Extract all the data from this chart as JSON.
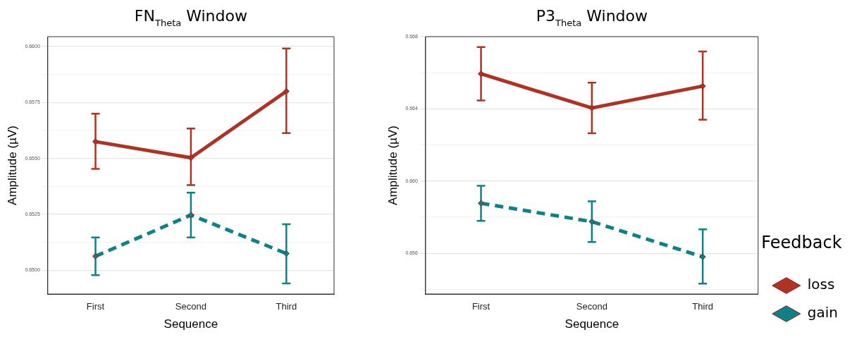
{
  "chart_data": [
    {
      "type": "line",
      "title": "FN$_{Theta}$ Window",
      "xlabel": "Sequence",
      "ylabel": "Amplitude (µV)",
      "categories": [
        "First",
        "Second",
        "Third"
      ],
      "series": [
        {
          "color": "#b03222",
          "line_style": "solid",
          "values": [
            0.65575,
            0.65503,
            0.658
          ],
          "errors": [
            [
              0.65453,
              0.657
            ],
            [
              0.65381,
              0.65634
            ],
            [
              0.65613,
              0.65991
            ]
          ]
        },
        {
          "color": "#0b8288",
          "line_style": "dashed",
          "values": [
            0.65063,
            0.65247,
            0.65075
          ],
          "errors": [
            [
              0.64978,
              0.65147
            ],
            [
              0.65147,
              0.65347
            ],
            [
              0.64941,
              0.65206
            ]
          ]
        }
      ],
      "ylim": [
        0.64894,
        0.66044
      ],
      "yticks": [
        {
          "value": 0.65,
          "label": "0.6500"
        },
        {
          "value": 0.65125,
          "label": null
        },
        {
          "value": 0.6525,
          "label": "0.6525"
        },
        {
          "value": 0.65375,
          "label": null
        },
        {
          "value": 0.655,
          "label": "0.6550"
        },
        {
          "value": 0.65625,
          "label": null
        },
        {
          "value": 0.6575,
          "label": "0.6575"
        },
        {
          "value": 0.65875,
          "label": null
        },
        {
          "value": 0.66,
          "label": "0.6600"
        }
      ],
      "grid": "y",
      "marker": "diamond",
      "legend": false
    },
    {
      "type": "line",
      "title": "P3$_{Theta}$ Window",
      "xlabel": "Sequence",
      "ylabel": "Amplitude (µV)",
      "legend_title": "Feedback",
      "categories": [
        "First",
        "Second",
        "Third"
      ],
      "series": [
        {
          "name": "loss",
          "color": "#b03222",
          "line_style": "solid",
          "values": [
            0.66594,
            0.66405,
            0.66526
          ],
          "errors": [
            [
              0.66446,
              0.66742
            ],
            [
              0.66265,
              0.66545
            ],
            [
              0.6634,
              0.66718
            ]
          ]
        },
        {
          "name": "gain",
          "color": "#0b8288",
          "line_style": "dashed",
          "values": [
            0.65877,
            0.65775,
            0.6558
          ],
          "errors": [
            [
              0.65779,
              0.65974
            ],
            [
              0.65662,
              0.65888
            ],
            [
              0.65432,
              0.65732
            ]
          ]
        }
      ],
      "ylim": [
        0.65374,
        0.668
      ],
      "yticks": [
        {
          "value": 0.654,
          "label": null
        },
        {
          "value": 0.656,
          "label": "0.656"
        },
        {
          "value": 0.658,
          "label": null
        },
        {
          "value": 0.66,
          "label": "0.660"
        },
        {
          "value": 0.662,
          "label": null
        },
        {
          "value": 0.664,
          "label": "0.664"
        },
        {
          "value": 0.666,
          "label": null
        },
        {
          "value": 0.668,
          "label": "0.668"
        }
      ],
      "grid": "y",
      "marker": "diamond",
      "legend": "bottom right"
    }
  ]
}
